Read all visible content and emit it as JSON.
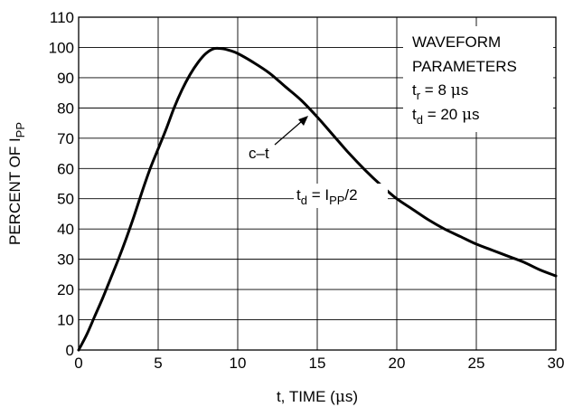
{
  "chart_data": {
    "type": "line",
    "xlabel_parts": [
      "t, TIME (",
      "μ",
      "s)"
    ],
    "ylabel_parts": [
      "PERCENT OF I",
      "PP"
    ],
    "xlim": [
      0,
      30
    ],
    "ylim": [
      0,
      110
    ],
    "x_ticks": [
      0,
      5,
      10,
      15,
      20,
      25,
      30
    ],
    "y_ticks": [
      0,
      10,
      20,
      30,
      40,
      50,
      60,
      70,
      80,
      90,
      100,
      110
    ],
    "grid": true,
    "series": [
      {
        "x": [
          0,
          0.5,
          1,
          1.5,
          2,
          2.5,
          3,
          3.5,
          4,
          4.5,
          5,
          5.5,
          6,
          6.5,
          7,
          7.5,
          8,
          8.5,
          9,
          9.5,
          10,
          11,
          12,
          13,
          14,
          15,
          16,
          17,
          18,
          19,
          20,
          21,
          22,
          23,
          24,
          25,
          26,
          27,
          28,
          29,
          30
        ],
        "y": [
          0,
          5,
          11,
          17,
          23.5,
          30,
          37,
          44.5,
          52.5,
          60,
          66.5,
          73,
          80,
          86,
          91,
          95,
          98,
          99.6,
          99.6,
          99,
          98,
          95,
          91.5,
          87,
          82.5,
          77,
          71,
          65,
          59.5,
          54.5,
          50,
          46.5,
          43,
          40,
          37.5,
          35,
          33,
          31,
          29,
          26.5,
          24.5
        ]
      }
    ],
    "annotations": {
      "waveform_line1": "WAVEFORM",
      "waveform_line2": "PARAMETERS",
      "tr_main": "t",
      "tr_sub": "r",
      "tr_value": " = 8 ",
      "tr_unit_mu": "μ",
      "tr_unit_s": "s",
      "td_main": "t",
      "td_sub": "d",
      "td_value": " = 20 ",
      "td_unit_mu": "μ",
      "td_unit_s": "s",
      "ct_label": "c–t",
      "half_t": "t",
      "half_d": "d",
      "half_eq": " = I",
      "half_pp": "PP",
      "half_div": "/2"
    }
  }
}
